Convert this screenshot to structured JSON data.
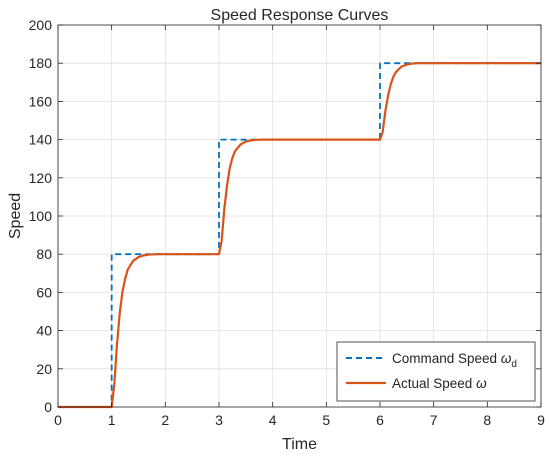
{
  "chart_data": {
    "type": "line",
    "title": "Speed Response Curves",
    "xlabel": "Time",
    "ylabel": "Speed",
    "xlim": [
      0,
      9
    ],
    "ylim": [
      0,
      200
    ],
    "xticks": [
      0,
      1,
      2,
      3,
      4,
      5,
      6,
      7,
      8,
      9
    ],
    "yticks": [
      0,
      20,
      40,
      60,
      80,
      100,
      120,
      140,
      160,
      180,
      200
    ],
    "grid": true,
    "legend_position": "bottom-right",
    "series": [
      {
        "name": "Command Speed ",
        "symbol": "ω",
        "subscript": "d",
        "style": "dashed",
        "color": "#0072BD",
        "x": [
          0,
          1,
          1,
          3,
          3,
          6,
          6,
          9
        ],
        "y": [
          0,
          0,
          80,
          80,
          140,
          140,
          180,
          180
        ]
      },
      {
        "name": "Actual Speed ",
        "symbol": "ω",
        "style": "solid",
        "color": "#D95319",
        "x": [
          0,
          1,
          1.05,
          1.1,
          1.15,
          1.2,
          1.25,
          1.3,
          1.4,
          1.5,
          1.6,
          1.7,
          1.85,
          2,
          3,
          3.05,
          3.1,
          3.15,
          3.2,
          3.25,
          3.3,
          3.4,
          3.5,
          3.6,
          3.7,
          3.85,
          4,
          6,
          6.05,
          6.1,
          6.15,
          6.2,
          6.25,
          6.3,
          6.4,
          6.5,
          6.6,
          6.7,
          6.85,
          7,
          9
        ],
        "y": [
          0,
          0,
          12,
          33,
          49,
          60,
          67,
          72,
          76.5,
          78.5,
          79.4,
          79.8,
          80,
          80,
          80,
          87,
          104,
          116,
          125,
          130.5,
          134,
          137.4,
          139,
          139.6,
          139.9,
          140,
          140,
          140,
          144,
          155,
          163,
          169,
          173,
          175.5,
          178.2,
          179.3,
          179.8,
          180,
          180,
          180,
          180
        ]
      }
    ]
  }
}
